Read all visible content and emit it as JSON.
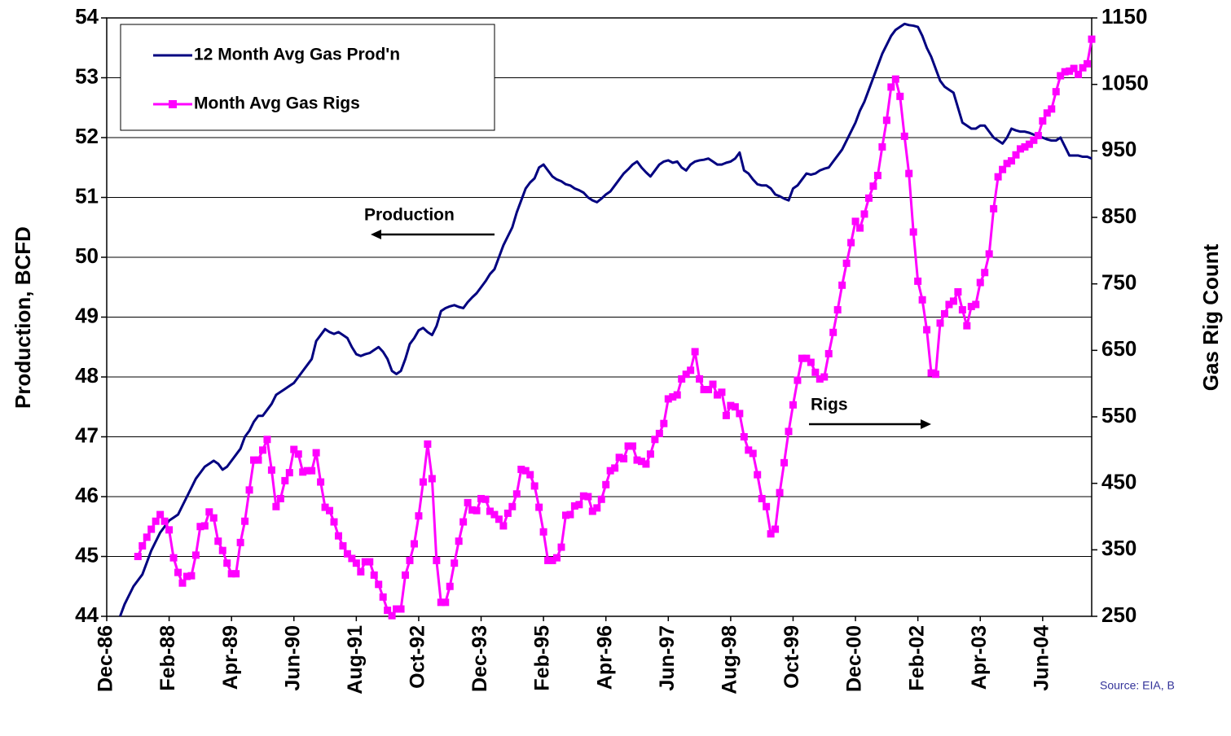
{
  "chart_data": {
    "type": "line",
    "y_label": "Production, BCFD",
    "y2_label": "Gas Rig Count",
    "source": "Source: EIA, B",
    "annotations": [
      "Production",
      "Rigs"
    ],
    "ylim": [
      44,
      54
    ],
    "yticks": [
      44,
      45,
      46,
      47,
      48,
      49,
      50,
      51,
      52,
      53,
      54
    ],
    "y2lim": [
      250,
      1150
    ],
    "y2ticks": [
      250,
      350,
      450,
      550,
      650,
      750,
      850,
      950,
      1050,
      1150
    ],
    "grid": true,
    "legend": "upper left",
    "categories": [
      "Dec-86",
      null,
      null,
      null,
      null,
      null,
      null,
      null,
      null,
      null,
      null,
      null,
      null,
      null,
      "Feb-88",
      null,
      null,
      null,
      null,
      null,
      null,
      null,
      null,
      null,
      null,
      null,
      null,
      null,
      "Apr-89",
      null,
      null,
      null,
      null,
      null,
      null,
      null,
      null,
      null,
      null,
      null,
      null,
      null,
      "Jun-90",
      null,
      null,
      null,
      null,
      null,
      null,
      null,
      null,
      null,
      null,
      null,
      null,
      null,
      "Aug-91",
      null,
      null,
      null,
      null,
      null,
      null,
      null,
      null,
      null,
      null,
      null,
      null,
      null,
      "Oct-92",
      null,
      null,
      null,
      null,
      null,
      null,
      null,
      null,
      null,
      null,
      null,
      null,
      null,
      "Dec-93",
      null,
      null,
      null,
      null,
      null,
      null,
      null,
      null,
      null,
      null,
      null,
      null,
      null,
      "Feb-95",
      null,
      null,
      null,
      null,
      null,
      null,
      null,
      null,
      null,
      null,
      null,
      null,
      null,
      "Apr-96",
      null,
      null,
      null,
      null,
      null,
      null,
      null,
      null,
      null,
      null,
      null,
      null,
      null,
      "Jun-97",
      null,
      null,
      null,
      null,
      null,
      null,
      null,
      null,
      null,
      null,
      null,
      null,
      null,
      "Aug-98",
      null,
      null,
      null,
      null,
      null,
      null,
      null,
      null,
      null,
      null,
      null,
      null,
      null,
      "Oct-99",
      null,
      null,
      null,
      null,
      null,
      null,
      null,
      null,
      null,
      null,
      null,
      null,
      null,
      "Dec-00",
      null,
      null,
      null,
      null,
      null,
      null,
      null,
      null,
      null,
      null,
      null,
      null,
      null,
      "Feb-02",
      null,
      null,
      null,
      null,
      null,
      null,
      null,
      null,
      null,
      null,
      null,
      null,
      null,
      "Apr-03",
      null,
      null,
      null,
      null,
      null,
      null,
      null,
      null,
      null,
      null,
      null,
      null,
      null,
      "Jun-04",
      null,
      null,
      null,
      null,
      null,
      null,
      null,
      null,
      null,
      null,
      null
    ],
    "series": [
      {
        "name": "12 Month Avg Gas Prod'n",
        "color": "#000080",
        "axis": "y",
        "marker": false,
        "values": [
          null,
          null,
          null,
          44.0,
          44.2,
          44.35,
          44.5,
          44.6,
          44.7,
          44.9,
          45.1,
          45.25,
          45.4,
          45.5,
          45.6,
          45.65,
          45.7,
          45.85,
          46.0,
          46.15,
          46.3,
          46.4,
          46.5,
          46.55,
          46.6,
          46.55,
          46.45,
          46.5,
          46.6,
          46.7,
          46.8,
          47.0,
          47.1,
          47.25,
          47.35,
          47.35,
          47.45,
          47.55,
          47.7,
          47.75,
          47.8,
          47.85,
          47.9,
          48.0,
          48.1,
          48.2,
          48.3,
          48.6,
          48.7,
          48.8,
          48.75,
          48.72,
          48.75,
          48.7,
          48.65,
          48.5,
          48.38,
          48.35,
          48.38,
          48.4,
          48.45,
          48.5,
          48.42,
          48.3,
          48.1,
          48.05,
          48.1,
          48.3,
          48.55,
          48.65,
          48.78,
          48.82,
          48.75,
          48.7,
          48.85,
          49.1,
          49.15,
          49.18,
          49.2,
          49.17,
          49.15,
          49.25,
          49.33,
          49.4,
          49.5,
          49.6,
          49.72,
          49.8,
          50.0,
          50.2,
          50.35,
          50.5,
          50.75,
          50.95,
          51.15,
          51.25,
          51.32,
          51.5,
          51.55,
          51.45,
          51.35,
          51.3,
          51.27,
          51.22,
          51.2,
          51.15,
          51.12,
          51.08,
          51.0,
          50.95,
          50.92,
          50.98,
          51.05,
          51.1,
          51.2,
          51.3,
          51.4,
          51.47,
          51.55,
          51.6,
          51.5,
          51.42,
          51.35,
          51.45,
          51.55,
          51.6,
          51.62,
          51.58,
          51.6,
          51.5,
          51.45,
          51.55,
          51.6,
          51.62,
          51.63,
          51.65,
          51.6,
          51.55,
          51.55,
          51.58,
          51.6,
          51.65,
          51.75,
          51.45,
          51.4,
          51.3,
          51.22,
          51.2,
          51.2,
          51.15,
          51.05,
          51.02,
          50.98,
          50.95,
          51.15,
          51.2,
          51.3,
          51.4,
          51.38,
          51.4,
          51.45,
          51.48,
          51.5,
          51.6,
          51.7,
          51.8,
          51.95,
          52.1,
          52.25,
          52.45,
          52.6,
          52.8,
          53.0,
          53.2,
          53.4,
          53.55,
          53.7,
          53.8,
          53.85,
          53.9,
          53.88,
          53.87,
          53.85,
          53.7,
          53.5,
          53.35,
          53.15,
          52.95,
          52.85,
          52.8,
          52.75,
          52.5,
          52.25,
          52.2,
          52.15,
          52.15,
          52.2,
          52.2,
          52.1,
          52.0,
          51.95,
          51.9,
          52.0,
          52.15,
          52.12,
          52.1,
          52.1,
          52.08,
          52.05,
          52.02,
          52.0,
          51.97,
          51.95,
          51.95,
          52.0,
          51.85,
          51.7,
          51.7,
          51.7,
          51.68,
          51.68,
          51.65
        ]
      },
      {
        "name": "Month Avg Gas Rigs",
        "color": "#ff00ff",
        "axis": "y2",
        "marker": true,
        "values": [
          null,
          null,
          null,
          null,
          null,
          null,
          null,
          340,
          356,
          369,
          381,
          393,
          403,
          393,
          380,
          338,
          316,
          300,
          310,
          311,
          342,
          385,
          386,
          407,
          398,
          363,
          349,
          330,
          314,
          314,
          361,
          393,
          440,
          485,
          485,
          500,
          516,
          470,
          415,
          427,
          454,
          466,
          501,
          494,
          467,
          469,
          469,
          496,
          452,
          414,
          409,
          392,
          371,
          356,
          344,
          337,
          330,
          317,
          332,
          332,
          312,
          298,
          279,
          259,
          251,
          261,
          261,
          312,
          334,
          359,
          401,
          452,
          509,
          457,
          334,
          271,
          271,
          295,
          330,
          363,
          392,
          421,
          410,
          409,
          427,
          426,
          408,
          403,
          396,
          386,
          405,
          415,
          434,
          471,
          469,
          463,
          446,
          414,
          377,
          334,
          334,
          338,
          354,
          402,
          403,
          416,
          418,
          431,
          430,
          408,
          413,
          426,
          448,
          469,
          473,
          489,
          487,
          506,
          506,
          485,
          483,
          479,
          494,
          516,
          525,
          540,
          577,
          580,
          583,
          607,
          614,
          620,
          648,
          607,
          591,
          591,
          599,
          583,
          587,
          552,
          567,
          565,
          555,
          520,
          500,
          495,
          463,
          427,
          415,
          374,
          381,
          436,
          481,
          528,
          568,
          605,
          638,
          638,
          632,
          617,
          607,
          610,
          645,
          677,
          711,
          748,
          781,
          812,
          844,
          834,
          855,
          879,
          897,
          913,
          956,
          996,
          1046,
          1058,
          1032,
          972,
          916,
          828,
          754,
          726,
          681,
          616,
          614,
          691,
          705,
          719,
          724,
          738,
          711,
          687,
          716,
          719,
          752,
          767,
          795,
          863,
          911,
          922,
          931,
          935,
          944,
          953,
          956,
          960,
          966,
          973,
          995,
          1007,
          1013,
          1039,
          1063,
          1069,
          1070,
          1074,
          1065,
          1075,
          1081,
          1118
        ]
      }
    ]
  }
}
